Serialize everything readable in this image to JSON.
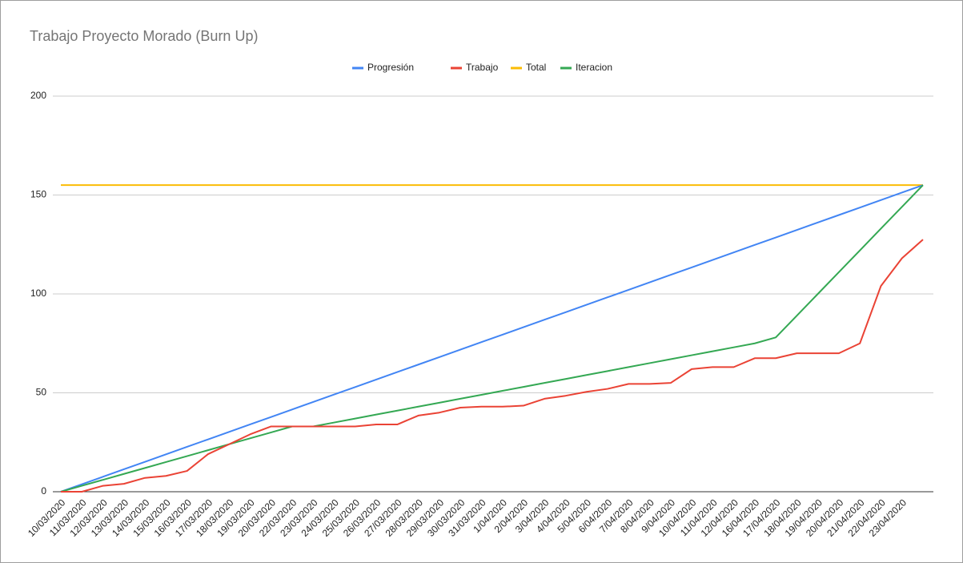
{
  "chart_data": {
    "type": "line",
    "title": "Trabajo Proyecto Morado (Burn Up)",
    "categories": [
      "10/03/2020",
      "11/03/2020",
      "12/03/2020",
      "13/03/2020",
      "14/03/2020",
      "15/03/2020",
      "16/03/2020",
      "17/03/2020",
      "18/03/2020",
      "19/03/2020",
      "20/03/2020",
      "22/03/2020",
      "23/03/2020",
      "24/03/2020",
      "25/03/2020",
      "26/03/2020",
      "27/03/2020",
      "28/03/2020",
      "29/03/2020",
      "30/03/2020",
      "31/03/2020",
      "1/04/2020",
      "2/04/2020",
      "3/04/2020",
      "4/04/2020",
      "5/04/2020",
      "6/04/2020",
      "7/04/2020",
      "8/04/2020",
      "9/04/2020",
      "10/04/2020",
      "11/04/2020",
      "12/04/2020",
      "16/04/2020",
      "17/04/2020",
      "18/04/2020",
      "19/04/2020",
      "20/04/2020",
      "21/04/2020",
      "22/04/2020",
      "23/04/2020",
      null
    ],
    "series": [
      {
        "name": "Progresión",
        "color": "#4285f4",
        "values": [
          0,
          3.78,
          7.56,
          11.34,
          15.12,
          18.9,
          22.68,
          26.46,
          30.24,
          34.02,
          37.8,
          41.59,
          45.37,
          49.15,
          52.93,
          56.71,
          60.49,
          64.27,
          68.05,
          71.83,
          75.61,
          79.39,
          83.17,
          86.95,
          90.73,
          94.51,
          98.29,
          102.07,
          105.85,
          109.63,
          113.41,
          117.2,
          120.98,
          124.76,
          128.54,
          132.32,
          136.1,
          139.88,
          143.66,
          147.44,
          151.22,
          155
        ]
      },
      {
        "name": "Trabajo",
        "color": "#ea4335",
        "values": [
          0,
          0,
          3,
          4,
          7,
          8,
          10.5,
          19,
          24,
          29,
          33,
          33,
          33,
          33,
          33,
          34,
          34,
          38.5,
          40,
          42.5,
          43,
          43,
          43.5,
          47,
          48.5,
          50.5,
          52,
          54.5,
          54.5,
          55,
          62,
          63,
          63,
          67.5,
          67.5,
          70,
          70,
          70,
          75,
          104,
          118,
          127.5
        ]
      },
      {
        "name": "Total",
        "color": "#fbbc04",
        "values": [
          155,
          155,
          155,
          155,
          155,
          155,
          155,
          155,
          155,
          155,
          155,
          155,
          155,
          155,
          155,
          155,
          155,
          155,
          155,
          155,
          155,
          155,
          155,
          155,
          155,
          155,
          155,
          155,
          155,
          155,
          155,
          155,
          155,
          155,
          155,
          155,
          155,
          155,
          155,
          155,
          155,
          155
        ]
      },
      {
        "name": "Iteracion",
        "color": "#34a853",
        "values": [
          0,
          3,
          6,
          9,
          12,
          15,
          18,
          21,
          24,
          27,
          30,
          33,
          33,
          35,
          37,
          39,
          41,
          43,
          45,
          47,
          49,
          51,
          53,
          55,
          57,
          59,
          61,
          63,
          65,
          67,
          69,
          71,
          73,
          75,
          78,
          89,
          100,
          111,
          122,
          133,
          144,
          155
        ]
      }
    ],
    "ylim": [
      0,
      200
    ],
    "yticks": [
      0,
      50,
      100,
      150,
      200
    ],
    "grid": true,
    "legend": "top"
  }
}
